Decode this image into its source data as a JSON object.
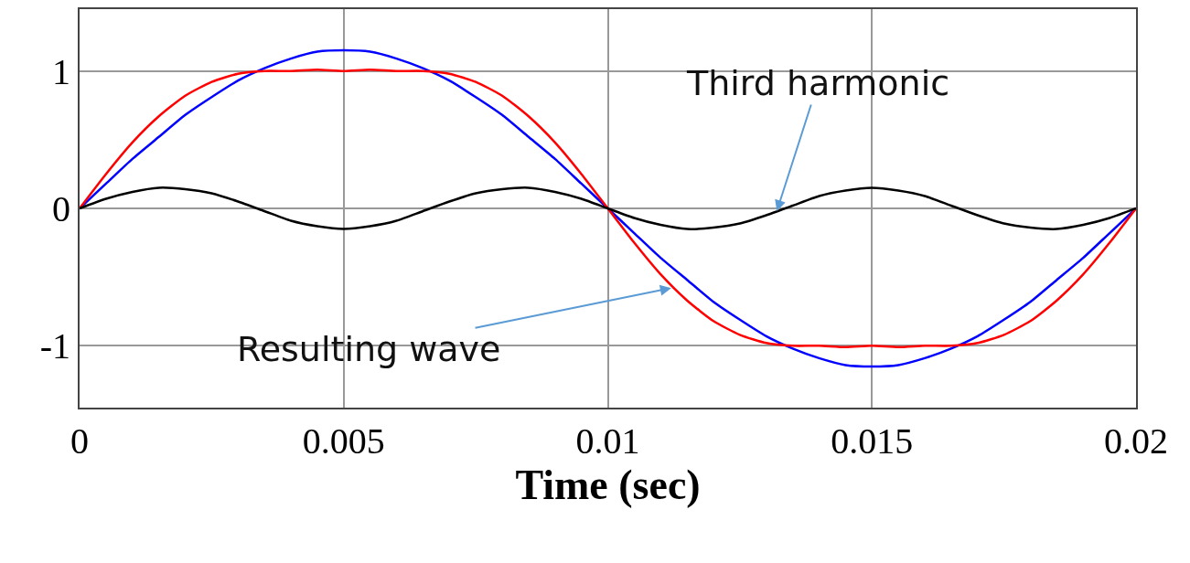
{
  "chart_data": {
    "type": "line",
    "xlabel": "Time (sec)",
    "x": [
      0,
      0.0005,
      0.001,
      0.0015,
      0.002,
      0.0025,
      0.003,
      0.0035,
      0.004,
      0.0045,
      0.005,
      0.0055,
      0.006,
      0.0065,
      0.007,
      0.0075,
      0.008,
      0.0085,
      0.009,
      0.0095,
      0.01,
      0.0105,
      0.011,
      0.0115,
      0.012,
      0.0125,
      0.013,
      0.0135,
      0.014,
      0.0145,
      0.015,
      0.0155,
      0.016,
      0.0165,
      0.017,
      0.0175,
      0.018,
      0.0185,
      0.019,
      0.0195,
      0.02
    ],
    "series": [
      {
        "color": "#0000ff",
        "values": [
          0,
          0.18,
          0.36,
          0.52,
          0.68,
          0.81,
          0.93,
          1.02,
          1.09,
          1.14,
          1.15,
          1.14,
          1.09,
          1.02,
          0.93,
          0.81,
          0.68,
          0.52,
          0.36,
          0.18,
          0,
          -0.18,
          -0.36,
          -0.52,
          -0.68,
          -0.81,
          -0.93,
          -1.02,
          -1.09,
          -1.14,
          -1.15,
          -1.14,
          -1.09,
          -1.02,
          -0.93,
          -0.81,
          -0.68,
          -0.52,
          -0.36,
          -0.18,
          0
        ]
      },
      {
        "color": "#ff0000",
        "values": [
          0,
          0.25,
          0.48,
          0.67,
          0.82,
          0.92,
          0.98,
          1.0,
          1.0,
          1.01,
          1.0,
          1.01,
          1.0,
          1.0,
          0.98,
          0.92,
          0.82,
          0.67,
          0.48,
          0.25,
          0,
          -0.25,
          -0.48,
          -0.67,
          -0.82,
          -0.92,
          -0.98,
          -1.0,
          -1.0,
          -1.01,
          -1.0,
          -1.01,
          -1.0,
          -1.0,
          -0.98,
          -0.92,
          -0.82,
          -0.67,
          -0.48,
          -0.25,
          0
        ]
      },
      {
        "color": "#000000",
        "values": [
          0,
          0.07,
          0.12,
          0.15,
          0.14,
          0.11,
          0.05,
          -0.02,
          -0.09,
          -0.13,
          -0.15,
          -0.13,
          -0.09,
          -0.02,
          0.05,
          0.11,
          0.14,
          0.15,
          0.12,
          0.07,
          0,
          -0.07,
          -0.12,
          -0.15,
          -0.14,
          -0.11,
          -0.05,
          0.02,
          0.09,
          0.13,
          0.15,
          0.13,
          0.09,
          0.02,
          -0.05,
          -0.11,
          -0.14,
          -0.15,
          -0.12,
          -0.07,
          0
        ]
      }
    ],
    "annotations": [
      {
        "text": "Third harmonic",
        "x": 0.0132,
        "y": -0.02
      },
      {
        "text": "Resulting wave",
        "x": 0.0112,
        "y": -0.58
      }
    ],
    "xlim": [
      0,
      0.02
    ],
    "xticks": [
      0,
      0.005,
      0.01,
      0.015,
      0.02
    ],
    "ylim": [
      -1.45,
      1.45
    ],
    "yticks": [
      -1,
      0,
      1
    ],
    "grid": true,
    "marker": "none",
    "line_style": "solid"
  }
}
